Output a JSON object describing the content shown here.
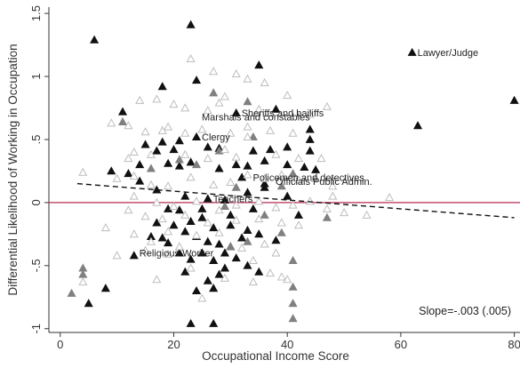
{
  "chart_data": {
    "type": "scatter",
    "xlabel": "Occupational Income Score",
    "ylabel": "Differential Likelihood of Working in Occupation",
    "xlim": [
      -2,
      81
    ],
    "ylim": [
      -1.03,
      1.55
    ],
    "x_ticks": [
      "0",
      "20",
      "40",
      "60",
      "80"
    ],
    "y_ticks": [
      "-1",
      "-.5",
      "0",
      ".5",
      "1",
      "1.5"
    ],
    "grid": false,
    "zero_line": {
      "y": 0,
      "color": "#c0506e"
    },
    "fit_line": {
      "x": [
        3,
        80
      ],
      "y": [
        0.15,
        -0.12
      ],
      "style": "dashed"
    },
    "annotation": "Slope=-.003 (.005)",
    "colors": {
      "black": "#111111",
      "gray": "#808080",
      "hollow": "#bdbdbd"
    },
    "series": [
      {
        "marker": "filled-black-triangle",
        "points": [
          [
            6,
            1.29
          ],
          [
            23,
            1.41
          ],
          [
            24,
            0.97
          ],
          [
            18,
            0.92
          ],
          [
            35,
            1.09
          ],
          [
            38,
            0.74
          ],
          [
            11,
            0.72
          ],
          [
            31,
            0.71
          ],
          [
            24,
            0.52
          ],
          [
            18,
            0.48
          ],
          [
            21,
            0.49
          ],
          [
            15,
            0.46
          ],
          [
            17,
            0.41
          ],
          [
            20,
            0.42
          ],
          [
            26,
            0.44
          ],
          [
            28,
            0.43
          ],
          [
            34,
            0.41
          ],
          [
            37,
            0.42
          ],
          [
            40,
            0.44
          ],
          [
            44,
            0.41
          ],
          [
            9,
            0.25
          ],
          [
            12,
            0.23
          ],
          [
            14,
            0.3
          ],
          [
            19,
            0.31
          ],
          [
            21,
            0.29
          ],
          [
            23,
            0.32
          ],
          [
            28,
            0.27
          ],
          [
            31,
            0.3
          ],
          [
            33,
            0.29
          ],
          [
            36,
            0.33
          ],
          [
            40,
            0.3
          ],
          [
            43,
            0.28
          ],
          [
            45,
            0.26
          ],
          [
            14,
            0.17
          ],
          [
            17,
            0.1
          ],
          [
            22,
            0.05
          ],
          [
            26,
            0.03
          ],
          [
            29,
            0.02
          ],
          [
            33,
            0.08
          ],
          [
            36,
            0.12
          ],
          [
            44,
            0.58
          ],
          [
            44,
            0.5
          ],
          [
            19,
            -0.05
          ],
          [
            21,
            -0.06
          ],
          [
            25,
            -0.12
          ],
          [
            27,
            -0.2
          ],
          [
            30,
            -0.18
          ],
          [
            33,
            -0.22
          ],
          [
            35,
            -0.25
          ],
          [
            17,
            -0.16
          ],
          [
            20,
            -0.18
          ],
          [
            22,
            -0.23
          ],
          [
            24,
            -0.27
          ],
          [
            26,
            -0.31
          ],
          [
            28,
            -0.33
          ],
          [
            30,
            -0.35
          ],
          [
            32,
            -0.28
          ],
          [
            16,
            -0.27
          ],
          [
            19,
            -0.32
          ],
          [
            13,
            -0.42
          ],
          [
            21,
            -0.4
          ],
          [
            23,
            -0.45
          ],
          [
            25,
            -0.4
          ],
          [
            27,
            -0.46
          ],
          [
            29,
            -0.4
          ],
          [
            31,
            -0.44
          ],
          [
            33,
            -0.5
          ],
          [
            35,
            -0.55
          ],
          [
            22,
            -0.55
          ],
          [
            26,
            -0.62
          ],
          [
            28,
            -0.57
          ],
          [
            24,
            -0.7
          ],
          [
            27,
            -0.68
          ],
          [
            29,
            -0.52
          ],
          [
            5,
            -0.8
          ],
          [
            8,
            -0.68
          ],
          [
            23,
            -0.96
          ],
          [
            27,
            -0.96
          ],
          [
            62,
            1.19
          ],
          [
            63,
            0.61
          ],
          [
            80,
            0.81
          ],
          [
            40,
            0.05
          ],
          [
            42,
            -0.1
          ],
          [
            32,
            0.2
          ],
          [
            36,
            0.15
          ],
          [
            25,
            -0.05
          ],
          [
            23,
            -0.15
          ],
          [
            30,
            -0.1
          ],
          [
            34,
            -0.05
          ],
          [
            18,
            -0.28
          ],
          [
            38,
            -0.3
          ]
        ]
      },
      {
        "marker": "filled-gray-triangle",
        "points": [
          [
            27,
            0.87
          ],
          [
            33,
            0.8
          ],
          [
            11,
            0.64
          ],
          [
            34,
            0.52
          ],
          [
            24,
            0.3
          ],
          [
            28,
            0.41
          ],
          [
            41,
            0.23
          ],
          [
            39,
            0.13
          ],
          [
            21,
            0.34
          ],
          [
            16,
            0.27
          ],
          [
            39,
            -0.24
          ],
          [
            33,
            -0.31
          ],
          [
            41,
            -0.46
          ],
          [
            41,
            -0.67
          ],
          [
            41,
            -0.8
          ],
          [
            41,
            -0.92
          ],
          [
            4,
            -0.52
          ],
          [
            4,
            -0.57
          ],
          [
            2,
            -0.72
          ],
          [
            29,
            -0.03
          ],
          [
            47,
            -0.12
          ],
          [
            31,
            0.12
          ],
          [
            36,
            -0.1
          ],
          [
            30,
            -0.35
          ]
        ]
      },
      {
        "marker": "hollow-triangle",
        "points": [
          [
            23,
            1.14
          ],
          [
            27,
            1.04
          ],
          [
            31,
            1.02
          ],
          [
            29,
            0.84
          ],
          [
            33,
            0.98
          ],
          [
            36,
            0.95
          ],
          [
            40,
            0.85
          ],
          [
            14,
            0.81
          ],
          [
            17,
            0.82
          ],
          [
            20,
            0.78
          ],
          [
            22,
            0.75
          ],
          [
            26,
            0.73
          ],
          [
            28,
            0.79
          ],
          [
            35,
            0.74
          ],
          [
            44,
            0.7
          ],
          [
            47,
            0.76
          ],
          [
            9,
            0.63
          ],
          [
            12,
            0.61
          ],
          [
            15,
            0.56
          ],
          [
            19,
            0.6
          ],
          [
            22,
            0.55
          ],
          [
            25,
            0.58
          ],
          [
            30,
            0.55
          ],
          [
            33,
            0.52
          ],
          [
            37,
            0.57
          ],
          [
            41,
            0.55
          ],
          [
            13,
            0.4
          ],
          [
            16,
            0.38
          ],
          [
            22,
            0.38
          ],
          [
            26,
            0.35
          ],
          [
            29,
            0.42
          ],
          [
            31,
            0.36
          ],
          [
            38,
            0.38
          ],
          [
            42,
            0.35
          ],
          [
            46,
            0.35
          ],
          [
            4,
            0.24
          ],
          [
            10,
            0.19
          ],
          [
            13,
            0.21
          ],
          [
            16,
            0.14
          ],
          [
            19,
            0.13
          ],
          [
            23,
            0.2
          ],
          [
            27,
            0.14
          ],
          [
            30,
            0.16
          ],
          [
            33,
            0.22
          ],
          [
            36,
            0.19
          ],
          [
            39,
            0.22
          ],
          [
            42,
            0.18
          ],
          [
            45,
            0.19
          ],
          [
            48,
            0.13
          ],
          [
            13,
            0.05
          ],
          [
            17,
            0.0
          ],
          [
            20,
            -0.03
          ],
          [
            24,
            0.01
          ],
          [
            28,
            -0.06
          ],
          [
            31,
            -0.02
          ],
          [
            35,
            0.01
          ],
          [
            38,
            -0.04
          ],
          [
            41,
            -0.02
          ],
          [
            44,
            0.01
          ],
          [
            47,
            -0.05
          ],
          [
            50,
            -0.08
          ],
          [
            54,
            -0.1
          ],
          [
            58,
            0.04
          ],
          [
            12,
            -0.06
          ],
          [
            15,
            -0.11
          ],
          [
            18,
            -0.13
          ],
          [
            22,
            -0.1
          ],
          [
            26,
            -0.16
          ],
          [
            31,
            -0.14
          ],
          [
            35,
            -0.13
          ],
          [
            39,
            -0.16
          ],
          [
            42,
            -0.18
          ],
          [
            13,
            -0.25
          ],
          [
            16,
            -0.31
          ],
          [
            19,
            -0.23
          ],
          [
            24,
            -0.26
          ],
          [
            28,
            -0.24
          ],
          [
            32,
            -0.36
          ],
          [
            36,
            -0.33
          ],
          [
            38,
            -0.4
          ],
          [
            15,
            -0.38
          ],
          [
            19,
            -0.41
          ],
          [
            23,
            -0.52
          ],
          [
            29,
            -0.6
          ],
          [
            34,
            -0.46
          ],
          [
            37,
            -0.56
          ],
          [
            40,
            -0.61
          ],
          [
            4,
            -0.63
          ],
          [
            17,
            -0.61
          ],
          [
            25,
            -0.76
          ],
          [
            34,
            -0.63
          ],
          [
            39,
            -0.59
          ],
          [
            10,
            -0.42
          ],
          [
            33,
            0.6
          ],
          [
            18,
            0.57
          ],
          [
            48,
            0.05
          ],
          [
            8,
            -0.2
          ],
          [
            21,
            -0.35
          ],
          [
            12,
            0.35
          ]
        ]
      }
    ],
    "labels": [
      {
        "text": "Lawyer/Judge",
        "x": 62,
        "y": 1.19
      },
      {
        "text": "Sheriffs and bailiffs",
        "x": 31,
        "y": 0.71
      },
      {
        "text": "Marshals and constables",
        "x": 24,
        "y": 0.68
      },
      {
        "text": "Clergy",
        "x": 24,
        "y": 0.52
      },
      {
        "text": "Policemen and detectives",
        "x": 33,
        "y": 0.2
      },
      {
        "text": "Officials Public Admin.",
        "x": 37,
        "y": 0.17
      },
      {
        "text": "Teachers",
        "x": 26,
        "y": 0.03
      },
      {
        "text": "Religious Worker",
        "x": 13,
        "y": -0.4
      }
    ]
  }
}
